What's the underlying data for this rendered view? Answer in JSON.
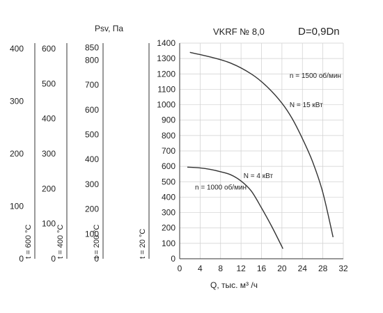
{
  "chart_data": {
    "type": "line",
    "title": "VKRF № 8,0",
    "subtitle": "D=0,9Dn",
    "xlabel": "Q, тыс. м³ /ч",
    "ylabel": "Psv, Па",
    "xlim": [
      0,
      32
    ],
    "ylim": [
      0,
      1400
    ],
    "xticks": [
      0,
      4,
      8,
      12,
      16,
      20,
      24,
      28,
      32
    ],
    "yticks": [
      0,
      100,
      200,
      300,
      400,
      500,
      600,
      700,
      800,
      900,
      1000,
      1100,
      1200,
      1300,
      1400
    ],
    "grid": true,
    "series": [
      {
        "name": "n = 1500 об/мин",
        "x": [
          2,
          6,
          10,
          14,
          17,
          20,
          22,
          24,
          26,
          28,
          30
        ],
        "y": [
          1340,
          1310,
          1270,
          1200,
          1120,
          1010,
          910,
          780,
          630,
          430,
          140
        ]
      },
      {
        "name": "n = 1000 об/мин",
        "x": [
          1.5,
          4,
          6,
          8,
          10,
          12,
          14,
          16,
          18,
          20.2
        ],
        "y": [
          595,
          590,
          580,
          565,
          545,
          505,
          440,
          330,
          210,
          65
        ]
      }
    ],
    "annotations": [
      {
        "text": "n = 1500 об/мин",
        "x": 21.5,
        "y": 1175
      },
      {
        "text": "N = 15 кВт",
        "x": 21.5,
        "y": 985
      },
      {
        "text": "N = 4 кВт",
        "x": 12.5,
        "y": 525
      },
      {
        "text": "n = 1000 об/мин",
        "x": 3,
        "y": 450
      }
    ],
    "extra_axes": [
      {
        "label": "t = 20 °C",
        "ticks": []
      },
      {
        "label": "t = 200 °C",
        "max_tick": 850,
        "ticks": [
          0,
          100,
          200,
          300,
          400,
          500,
          600,
          700,
          800,
          850
        ]
      },
      {
        "label": "t = 400 °C",
        "ticks": [
          0,
          100,
          200,
          300,
          400,
          500,
          600
        ]
      },
      {
        "label": "t = 600 °C",
        "ticks": [
          0,
          100,
          200,
          300,
          400
        ]
      }
    ]
  }
}
